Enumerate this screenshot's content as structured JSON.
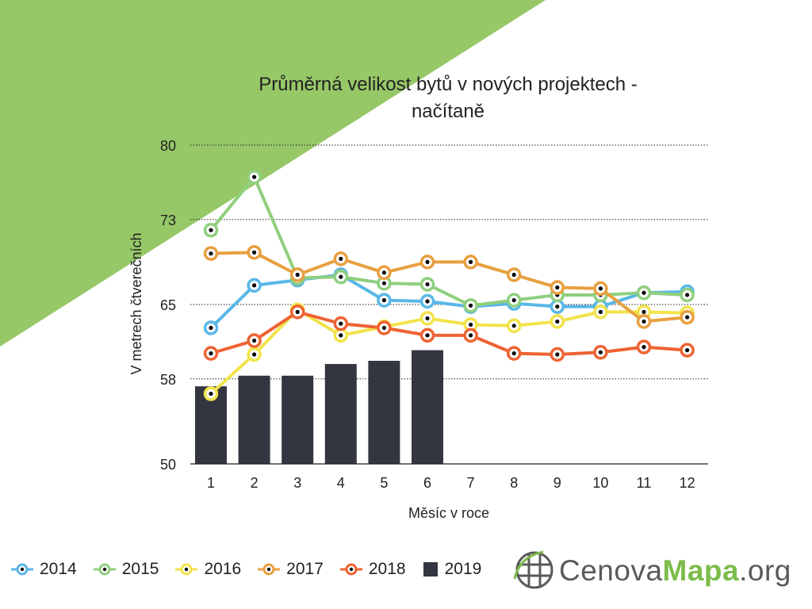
{
  "chart_data": {
    "type": "line",
    "title_lines": [
      "Průměrná velikost bytů v nových projektech -",
      "načítaně"
    ],
    "xlabel": "Měsíc v roce",
    "ylabel": "V metrech čtverečních",
    "x": [
      1,
      2,
      3,
      4,
      5,
      6,
      7,
      8,
      9,
      10,
      11,
      12
    ],
    "yticks": [
      "80",
      "73",
      "65",
      "58",
      "50"
    ],
    "ylim": [
      50,
      80
    ],
    "grid": "horizontal dotted",
    "legend_position": "bottom-left",
    "series": [
      {
        "name": "2014",
        "kind": "line",
        "color": "#59b7e8",
        "values": [
          62.8,
          66.8,
          67.3,
          67.8,
          65.4,
          65.3,
          64.8,
          65.1,
          64.8,
          64.8,
          66.1,
          66.2
        ]
      },
      {
        "name": "2015",
        "kind": "line",
        "color": "#8fcf7e",
        "values": [
          72.0,
          77.0,
          67.5,
          67.6,
          67.0,
          66.9,
          64.9,
          65.4,
          65.9,
          65.9,
          66.1,
          65.9
        ]
      },
      {
        "name": "2016",
        "kind": "line",
        "color": "#f2e34a",
        "values": [
          56.6,
          60.3,
          64.5,
          62.1,
          62.9,
          63.7,
          63.1,
          63.0,
          63.4,
          64.3,
          64.3,
          64.2
        ]
      },
      {
        "name": "2017",
        "kind": "line",
        "color": "#e8a040",
        "values": [
          69.8,
          69.9,
          67.8,
          69.3,
          68.0,
          69.0,
          69.0,
          67.8,
          66.6,
          66.5,
          63.4,
          63.8
        ]
      },
      {
        "name": "2018",
        "kind": "line",
        "color": "#ee6333",
        "values": [
          60.4,
          61.6,
          64.3,
          63.2,
          62.8,
          62.1,
          62.1,
          60.4,
          60.3,
          60.5,
          61.0,
          60.7
        ]
      },
      {
        "name": "2019",
        "kind": "bar",
        "color": "#333640",
        "values": [
          57.3,
          58.3,
          58.3,
          59.4,
          59.7,
          60.7,
          null,
          null,
          null,
          null,
          null,
          null
        ]
      }
    ]
  },
  "colors": {
    "background_band": "#97c868",
    "axis": "#222222",
    "marker_center": "#000000"
  },
  "brand": {
    "icon": "globe-grid-icon",
    "text_a": "Cenova",
    "text_b": "Mapa",
    "text_c": ".org"
  }
}
